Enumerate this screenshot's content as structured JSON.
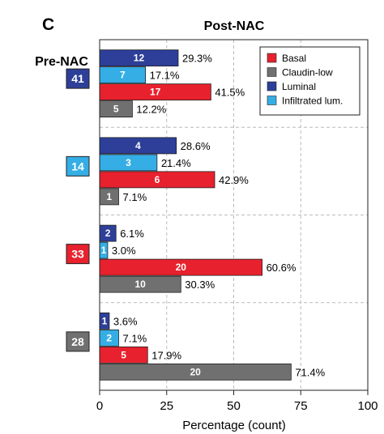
{
  "panel_label": "C",
  "chart_data": {
    "type": "bar",
    "orientation": "horizontal",
    "title": "Post-NAC",
    "row_axis_title": "Pre-NAC",
    "xlabel": "Percentage (count)",
    "xlim": [
      0,
      100
    ],
    "xticks": [
      0,
      25,
      50,
      75,
      100
    ],
    "grid": true,
    "legend_position": "top-right",
    "series": [
      {
        "name": "Basal",
        "color": "#e8212e"
      },
      {
        "name": "Claudin-low",
        "color": "#707070"
      },
      {
        "name": "Luminal",
        "color": "#2d3f99"
      },
      {
        "name": "Infiltrated lum.",
        "color": "#35aee5"
      }
    ],
    "groups": [
      {
        "label": "41",
        "color": "#2d3f99",
        "bars": [
          {
            "series": "Luminal",
            "count": "12",
            "percent": 29.3,
            "percent_label": "29.3%"
          },
          {
            "series": "Infiltrated lum.",
            "count": "7",
            "percent": 17.1,
            "percent_label": "17.1%"
          },
          {
            "series": "Basal",
            "count": "17",
            "percent": 41.5,
            "percent_label": "41.5%"
          },
          {
            "series": "Claudin-low",
            "count": "5",
            "percent": 12.2,
            "percent_label": "12.2%"
          }
        ]
      },
      {
        "label": "14",
        "color": "#35aee5",
        "bars": [
          {
            "series": "Luminal",
            "count": "4",
            "percent": 28.6,
            "percent_label": "28.6%"
          },
          {
            "series": "Infiltrated lum.",
            "count": "3",
            "percent": 21.4,
            "percent_label": "21.4%"
          },
          {
            "series": "Basal",
            "count": "6",
            "percent": 42.9,
            "percent_label": "42.9%"
          },
          {
            "series": "Claudin-low",
            "count": "1",
            "percent": 7.1,
            "percent_label": "7.1%"
          }
        ]
      },
      {
        "label": "33",
        "color": "#e8212e",
        "bars": [
          {
            "series": "Luminal",
            "count": "2",
            "percent": 6.1,
            "percent_label": "6.1%"
          },
          {
            "series": "Infiltrated lum.",
            "count": "1",
            "percent": 3.0,
            "percent_label": "3.0%"
          },
          {
            "series": "Basal",
            "count": "20",
            "percent": 60.6,
            "percent_label": "60.6%"
          },
          {
            "series": "Claudin-low",
            "count": "10",
            "percent": 30.3,
            "percent_label": "30.3%"
          }
        ]
      },
      {
        "label": "28",
        "color": "#707070",
        "bars": [
          {
            "series": "Luminal",
            "count": "1",
            "percent": 3.6,
            "percent_label": "3.6%"
          },
          {
            "series": "Infiltrated lum.",
            "count": "2",
            "percent": 7.1,
            "percent_label": "7.1%"
          },
          {
            "series": "Basal",
            "count": "5",
            "percent": 17.9,
            "percent_label": "17.9%"
          },
          {
            "series": "Claudin-low",
            "count": "20",
            "percent": 71.4,
            "percent_label": "71.4%"
          }
        ]
      }
    ]
  }
}
